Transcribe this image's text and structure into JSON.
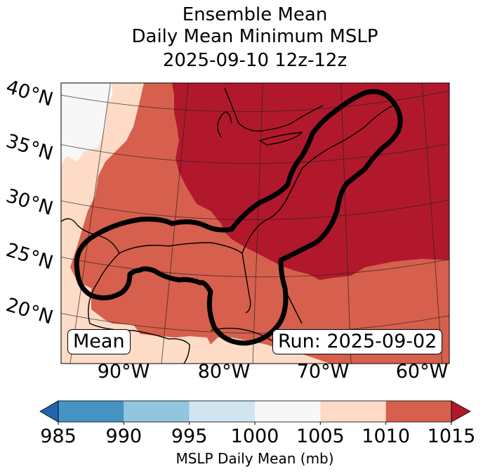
{
  "chart_data": {
    "type": "heatmap",
    "title": [
      "Ensemble Mean",
      "Daily Mean Minimum MSLP",
      "2025-09-10 12z-12z"
    ],
    "map": {
      "lat_ticks": [
        "40°N",
        "35°N",
        "30°N",
        "25°N",
        "20°N"
      ],
      "lon_ticks": [
        "90°W",
        "80°W",
        "70°W",
        "60°W"
      ],
      "lat_range": [
        15,
        42
      ],
      "lon_range": [
        -97,
        -59
      ],
      "gridlines": true,
      "coastlines": true,
      "contour_description": "thick black outline enclosing Gulf of Mexico, Florida and US East Coast into Nova Scotia"
    },
    "regions": [
      {
        "name": "Northeast US / Atlantic",
        "bin": "1015+"
      },
      {
        "name": "Central US / Gulf / Caribbean",
        "bin": "1010-1015"
      },
      {
        "name": "Western margin / Mexico",
        "bin": "1005-1010"
      },
      {
        "name": "Far northwest corner",
        "bin": "1000-1005"
      }
    ],
    "colorbar": {
      "label": "MSLP Daily Mean (mb)",
      "ticks": [
        985,
        990,
        995,
        1000,
        1005,
        1010,
        1015
      ],
      "bins": [
        {
          "range": "<985",
          "color": "#2166ac"
        },
        {
          "range": "985-990",
          "color": "#4393c3"
        },
        {
          "range": "990-995",
          "color": "#92c5de"
        },
        {
          "range": "995-1000",
          "color": "#d1e5f0"
        },
        {
          "range": "1000-1005",
          "color": "#f7f7f7"
        },
        {
          "range": "1005-1010",
          "color": "#fddbc7"
        },
        {
          "range": "1010-1015",
          "color": "#d6604d"
        },
        {
          "range": ">1015",
          "color": "#b2182b"
        }
      ],
      "extend": "both"
    },
    "annotations": {
      "left": "Mean",
      "right": "Run: 2025-09-02"
    }
  }
}
